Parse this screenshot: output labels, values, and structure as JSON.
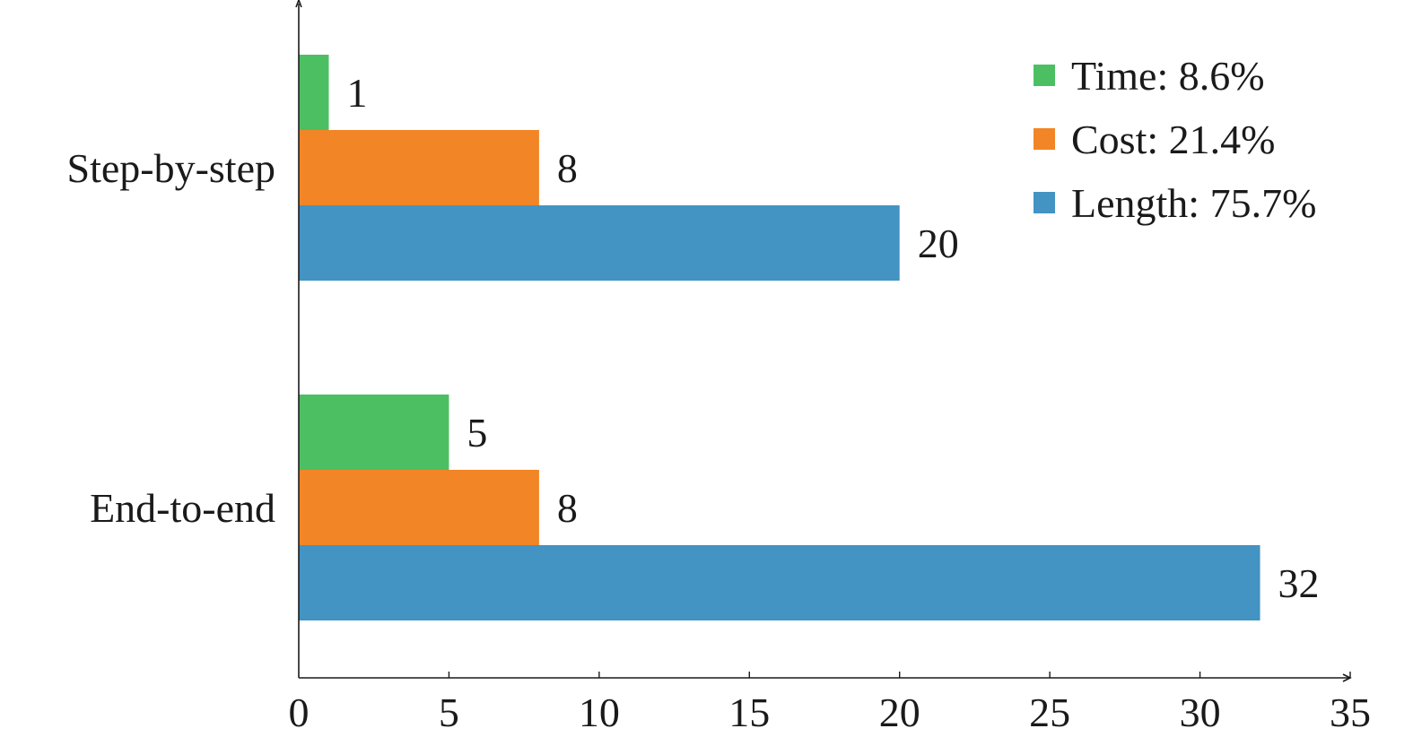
{
  "chart_data": {
    "type": "bar",
    "orientation": "horizontal",
    "title": "",
    "xlabel": "",
    "ylabel": "",
    "categories": [
      "Step-by-step",
      "End-to-end"
    ],
    "series": [
      {
        "name": "Time: 8.6%",
        "color": "#4dbf63",
        "values": [
          1,
          5
        ]
      },
      {
        "name": "Cost: 21.4%",
        "color": "#f28525",
        "values": [
          8,
          8
        ]
      },
      {
        "name": "Length: 75.7%",
        "color": "#4393c3",
        "values": [
          20,
          32
        ]
      }
    ],
    "xlim": [
      0,
      35
    ],
    "xticks": [
      0,
      5,
      10,
      15,
      20,
      25,
      30,
      35
    ],
    "grid": false,
    "legend_position": "top-right",
    "data_labels": true
  }
}
